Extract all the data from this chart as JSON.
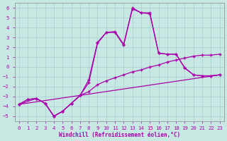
{
  "xlabel": "Windchill (Refroidissement éolien,°C)",
  "xlim": [
    -0.5,
    23.5
  ],
  "ylim": [
    -5.5,
    6.5
  ],
  "xtick_vals": [
    0,
    1,
    2,
    3,
    4,
    5,
    6,
    7,
    8,
    9,
    10,
    11,
    12,
    13,
    14,
    15,
    16,
    17,
    18,
    19,
    20,
    21,
    22,
    23
  ],
  "ytick_vals": [
    -5,
    -4,
    -3,
    -2,
    -1,
    0,
    1,
    2,
    3,
    4,
    5,
    6
  ],
  "bg_color": "#c8e8e4",
  "line_color": "#aa00aa",
  "grid_color": "#aacccc",
  "line1_x": [
    0,
    1,
    2,
    3,
    4,
    5,
    6,
    7,
    8,
    9,
    10,
    11,
    12,
    13,
    14,
    15,
    16,
    17,
    18,
    19,
    20,
    21,
    22,
    23
  ],
  "line1_y": [
    -3.8,
    -3.3,
    -3.2,
    -3.7,
    -5.0,
    -4.5,
    -3.7,
    -2.9,
    -1.3,
    2.5,
    3.5,
    3.6,
    2.3,
    6.0,
    5.5,
    5.5,
    1.4,
    1.3,
    1.3,
    -0.1,
    -0.8,
    -0.9,
    -0.9,
    -0.8
  ],
  "line2_x": [
    0,
    2,
    3,
    4,
    5,
    6,
    7,
    8,
    9,
    10,
    11,
    12,
    13,
    14,
    15,
    16,
    17,
    18,
    19,
    20,
    21,
    22,
    23
  ],
  "line2_y": [
    -3.8,
    -3.2,
    -3.7,
    -5.0,
    -4.5,
    -3.7,
    -2.9,
    -1.6,
    2.4,
    3.5,
    3.5,
    2.2,
    5.9,
    5.5,
    5.4,
    1.4,
    1.3,
    1.3,
    -0.1,
    -0.8,
    -0.9,
    -0.9,
    -0.8
  ],
  "line3_x": [
    0,
    1,
    2,
    3,
    4,
    5,
    6,
    7,
    8,
    9,
    10,
    11,
    12,
    13,
    14,
    15,
    16,
    17,
    18,
    19,
    20,
    21,
    22,
    23
  ],
  "line3_y": [
    -3.8,
    -3.3,
    -3.2,
    -3.7,
    -5.0,
    -4.5,
    -3.7,
    -2.9,
    -2.5,
    -1.8,
    -1.4,
    -1.1,
    -0.8,
    -0.5,
    -0.3,
    0.0,
    0.2,
    0.5,
    0.7,
    0.9,
    1.1,
    1.2,
    1.2,
    1.3
  ],
  "line4_x": [
    0,
    23
  ],
  "line4_y": [
    -3.8,
    -0.8
  ]
}
